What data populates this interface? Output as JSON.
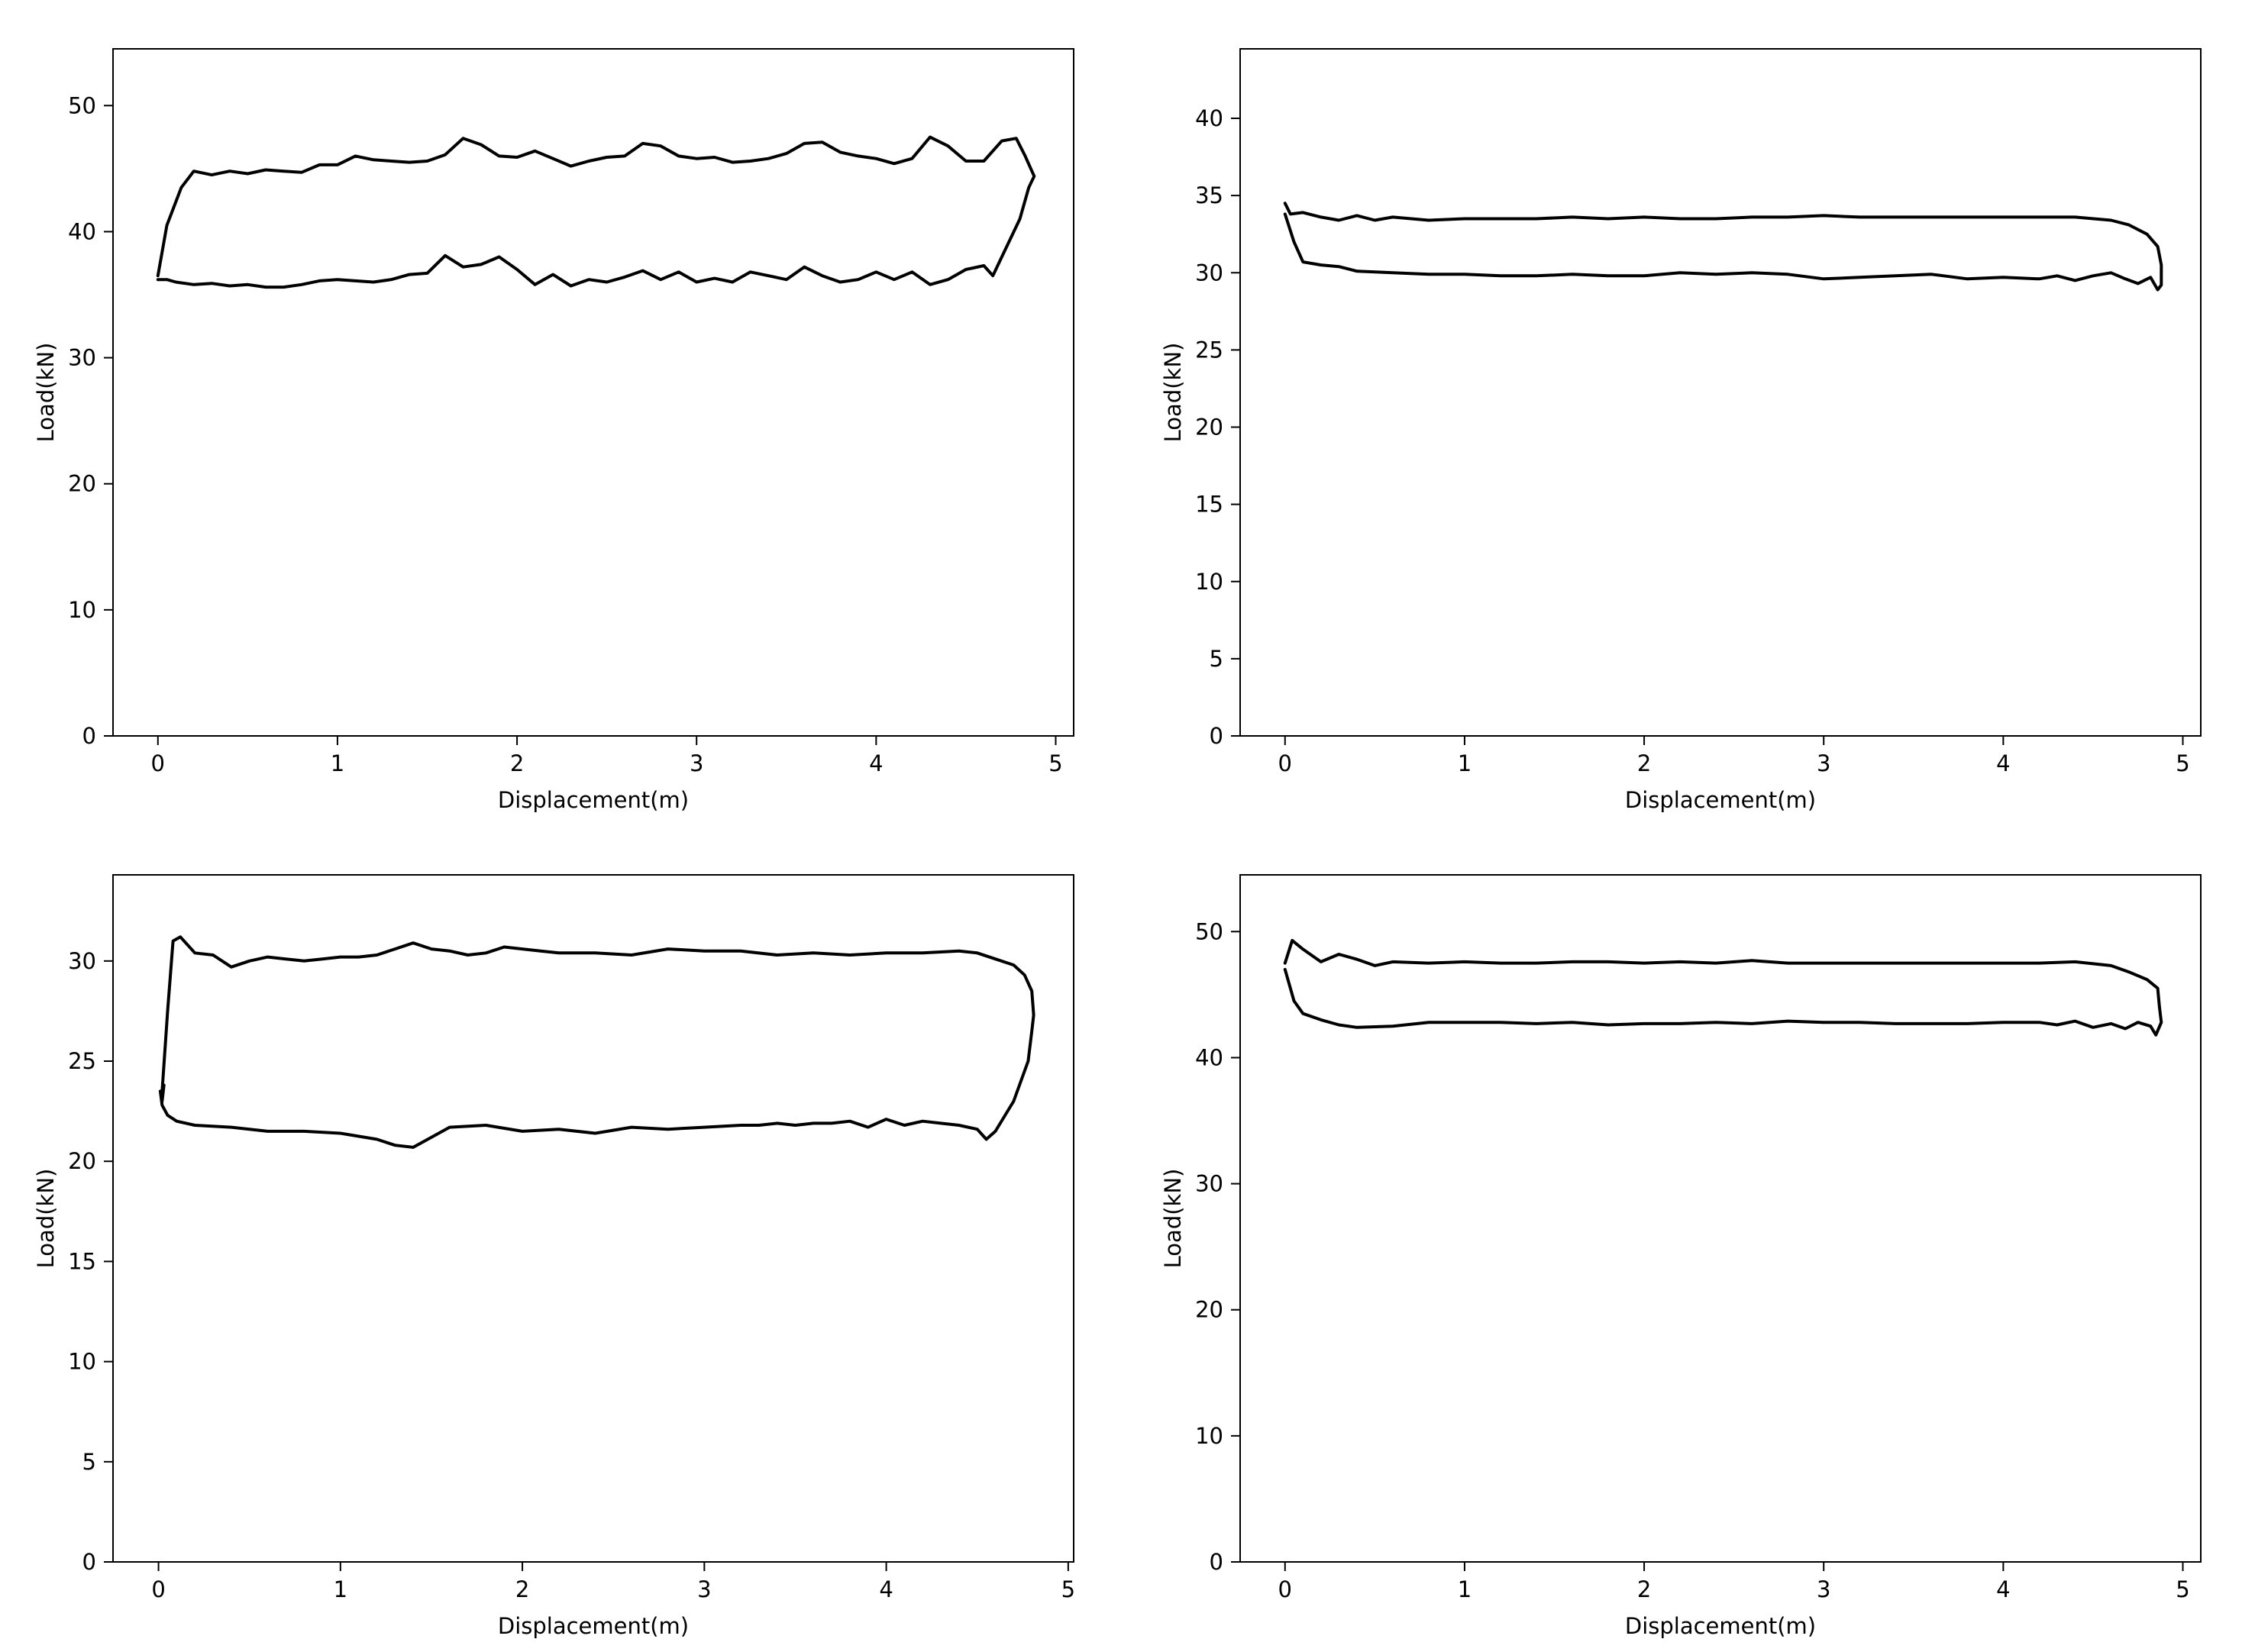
{
  "figure": {
    "background": "#ffffff",
    "line_color": "#000000"
  },
  "chart_data": [
    {
      "type": "line",
      "xlabel": "Displacement(m)",
      "ylabel": "Load(kN)",
      "xlim": [
        -0.25,
        5.1
      ],
      "ylim": [
        0,
        54.5
      ],
      "xticks": [
        0,
        1,
        2,
        3,
        4,
        5
      ],
      "yticks": [
        0,
        10,
        20,
        30,
        40,
        50
      ],
      "grid": false,
      "legend": "none",
      "x": [
        0,
        0.05,
        0.13,
        0.2,
        0.3,
        0.4,
        0.5,
        0.6,
        0.7,
        0.8,
        0.9,
        1.0,
        1.1,
        1.2,
        1.3,
        1.4,
        1.5,
        1.6,
        1.7,
        1.8,
        1.9,
        2.0,
        2.1,
        2.2,
        2.3,
        2.4,
        2.5,
        2.6,
        2.7,
        2.8,
        2.9,
        3.0,
        3.1,
        3.2,
        3.3,
        3.4,
        3.5,
        3.6,
        3.7,
        3.8,
        3.9,
        4.0,
        4.1,
        4.2,
        4.3,
        4.4,
        4.5,
        4.6,
        4.7,
        4.78,
        4.83,
        4.88,
        4.85,
        4.8,
        4.7,
        4.65,
        4.6,
        4.5,
        4.4,
        4.3,
        4.2,
        4.1,
        4.0,
        3.9,
        3.8,
        3.7,
        3.6,
        3.5,
        3.4,
        3.3,
        3.2,
        3.1,
        3.0,
        2.9,
        2.8,
        2.7,
        2.6,
        2.5,
        2.4,
        2.3,
        2.2,
        2.1,
        2.0,
        1.9,
        1.8,
        1.7,
        1.6,
        1.5,
        1.4,
        1.3,
        1.2,
        1.1,
        1.0,
        0.9,
        0.8,
        0.7,
        0.6,
        0.5,
        0.4,
        0.3,
        0.2,
        0.1,
        0.05,
        0
      ],
      "y": [
        36.5,
        40.5,
        43.5,
        44.8,
        44.5,
        44.8,
        44.6,
        44.9,
        44.8,
        44.7,
        45.3,
        45.3,
        46.0,
        45.7,
        45.6,
        45.5,
        45.6,
        46.1,
        47.4,
        46.9,
        46.0,
        45.9,
        46.4,
        45.8,
        45.2,
        45.6,
        45.9,
        46.0,
        47.0,
        46.8,
        46.0,
        45.8,
        45.9,
        45.5,
        45.6,
        45.8,
        46.2,
        47.0,
        47.1,
        46.3,
        46.0,
        45.8,
        45.4,
        45.8,
        47.5,
        46.8,
        45.6,
        45.6,
        47.2,
        47.4,
        46.0,
        44.4,
        43.5,
        41.0,
        38.0,
        36.5,
        37.3,
        37.0,
        36.2,
        35.8,
        36.8,
        36.2,
        36.8,
        36.2,
        36.0,
        36.5,
        37.2,
        36.2,
        36.5,
        36.8,
        36.0,
        36.3,
        36.0,
        36.8,
        36.2,
        36.9,
        36.4,
        36.0,
        36.2,
        35.7,
        36.6,
        35.8,
        37.0,
        38.0,
        37.4,
        37.2,
        38.1,
        36.7,
        36.6,
        36.2,
        36.0,
        36.1,
        36.2,
        36.1,
        35.8,
        35.6,
        35.6,
        35.8,
        35.7,
        35.9,
        35.8,
        36.0,
        36.2,
        36.2
      ]
    },
    {
      "type": "line",
      "xlabel": "Displacement(m)",
      "ylabel": "Load(kN)",
      "xlim": [
        -0.25,
        5.1
      ],
      "ylim": [
        0,
        44.5
      ],
      "xticks": [
        0,
        1,
        2,
        3,
        4,
        5
      ],
      "yticks": [
        0,
        5,
        10,
        15,
        20,
        25,
        30,
        35,
        40
      ],
      "grid": false,
      "legend": "none",
      "x": [
        0,
        0.03,
        0.1,
        0.2,
        0.3,
        0.4,
        0.5,
        0.6,
        0.8,
        1.0,
        1.2,
        1.4,
        1.6,
        1.8,
        2.0,
        2.2,
        2.4,
        2.6,
        2.8,
        3.0,
        3.2,
        3.4,
        3.6,
        3.8,
        4.0,
        4.2,
        4.4,
        4.6,
        4.7,
        4.8,
        4.86,
        4.88,
        4.88,
        4.86,
        4.82,
        4.75,
        4.68,
        4.6,
        4.5,
        4.4,
        4.3,
        4.2,
        4.0,
        3.8,
        3.6,
        3.4,
        3.2,
        3.0,
        2.8,
        2.6,
        2.4,
        2.2,
        2.0,
        1.8,
        1.6,
        1.4,
        1.2,
        1.0,
        0.8,
        0.6,
        0.4,
        0.3,
        0.2,
        0.1,
        0.05,
        0
      ],
      "y": [
        34.5,
        33.8,
        33.9,
        33.6,
        33.4,
        33.7,
        33.4,
        33.6,
        33.4,
        33.5,
        33.5,
        33.5,
        33.6,
        33.5,
        33.6,
        33.5,
        33.5,
        33.6,
        33.6,
        33.7,
        33.6,
        33.6,
        33.6,
        33.6,
        33.6,
        33.6,
        33.6,
        33.4,
        33.1,
        32.5,
        31.7,
        30.5,
        29.2,
        28.9,
        29.7,
        29.3,
        29.6,
        30.0,
        29.8,
        29.5,
        29.8,
        29.6,
        29.7,
        29.6,
        29.9,
        29.8,
        29.7,
        29.6,
        29.9,
        30.0,
        29.9,
        30.0,
        29.8,
        29.8,
        29.9,
        29.8,
        29.8,
        29.9,
        29.9,
        30.0,
        30.1,
        30.4,
        30.5,
        30.7,
        32.0,
        33.8
      ]
    },
    {
      "type": "line",
      "xlabel": "Displacement(m)",
      "ylabel": "Load(kN)",
      "xlim": [
        -0.25,
        5.03
      ],
      "ylim": [
        0,
        34.3
      ],
      "xticks": [
        0,
        1,
        2,
        3,
        4,
        5
      ],
      "yticks": [
        0,
        5,
        10,
        15,
        20,
        25,
        30
      ],
      "grid": false,
      "legend": "none",
      "x": [
        0.02,
        0.05,
        0.08,
        0.12,
        0.2,
        0.3,
        0.4,
        0.5,
        0.6,
        0.7,
        0.8,
        0.9,
        1.0,
        1.1,
        1.2,
        1.3,
        1.4,
        1.5,
        1.6,
        1.7,
        1.8,
        1.9,
        2.0,
        2.1,
        2.2,
        2.4,
        2.6,
        2.8,
        3.0,
        3.2,
        3.4,
        3.6,
        3.8,
        4.0,
        4.2,
        4.4,
        4.5,
        4.6,
        4.7,
        4.76,
        4.8,
        4.81,
        4.8,
        4.78,
        4.7,
        4.6,
        4.55,
        4.5,
        4.4,
        4.3,
        4.2,
        4.1,
        4.0,
        3.9,
        3.8,
        3.7,
        3.6,
        3.5,
        3.4,
        3.3,
        3.2,
        3.0,
        2.8,
        2.6,
        2.4,
        2.2,
        2.0,
        1.8,
        1.6,
        1.5,
        1.4,
        1.3,
        1.2,
        1.0,
        0.8,
        0.6,
        0.4,
        0.2,
        0.1,
        0.05,
        0.02,
        0.01,
        0.02,
        0.03
      ],
      "y": [
        23.5,
        27.5,
        31.0,
        31.2,
        30.4,
        30.3,
        29.7,
        30.0,
        30.2,
        30.1,
        30.0,
        30.1,
        30.2,
        30.2,
        30.3,
        30.6,
        30.9,
        30.6,
        30.5,
        30.3,
        30.4,
        30.7,
        30.6,
        30.5,
        30.4,
        30.4,
        30.3,
        30.6,
        30.5,
        30.5,
        30.3,
        30.4,
        30.3,
        30.4,
        30.4,
        30.5,
        30.4,
        30.1,
        29.8,
        29.3,
        28.5,
        27.3,
        26.5,
        25.0,
        23.0,
        21.5,
        21.1,
        21.6,
        21.8,
        21.9,
        22.0,
        21.8,
        22.1,
        21.7,
        22.0,
        21.9,
        21.9,
        21.8,
        21.9,
        21.8,
        21.8,
        21.7,
        21.6,
        21.7,
        21.4,
        21.6,
        21.5,
        21.8,
        21.7,
        21.2,
        20.7,
        20.8,
        21.1,
        21.4,
        21.5,
        21.5,
        21.7,
        21.8,
        22.0,
        22.3,
        22.8,
        23.5,
        23.0,
        23.8
      ]
    },
    {
      "type": "line",
      "xlabel": "Displacement(m)",
      "ylabel": "Load(kN)",
      "xlim": [
        -0.25,
        5.1
      ],
      "ylim": [
        0,
        54.5
      ],
      "xticks": [
        0,
        1,
        2,
        3,
        4,
        5
      ],
      "yticks": [
        0,
        10,
        20,
        30,
        40,
        50
      ],
      "grid": false,
      "legend": "none",
      "x": [
        0,
        0.04,
        0.1,
        0.2,
        0.3,
        0.4,
        0.5,
        0.6,
        0.8,
        1.0,
        1.2,
        1.4,
        1.6,
        1.8,
        2.0,
        2.2,
        2.4,
        2.6,
        2.8,
        3.0,
        3.2,
        3.4,
        3.6,
        3.8,
        4.0,
        4.2,
        4.4,
        4.6,
        4.7,
        4.8,
        4.86,
        4.87,
        4.88,
        4.85,
        4.82,
        4.75,
        4.68,
        4.6,
        4.5,
        4.4,
        4.3,
        4.2,
        4.0,
        3.8,
        3.6,
        3.4,
        3.2,
        3.0,
        2.8,
        2.6,
        2.4,
        2.2,
        2.0,
        1.8,
        1.6,
        1.4,
        1.2,
        1.0,
        0.8,
        0.6,
        0.4,
        0.3,
        0.2,
        0.1,
        0.05,
        0.02,
        0
      ],
      "y": [
        47.5,
        49.3,
        48.6,
        47.6,
        48.2,
        47.8,
        47.3,
        47.6,
        47.5,
        47.6,
        47.5,
        47.5,
        47.6,
        47.6,
        47.5,
        47.6,
        47.5,
        47.7,
        47.5,
        47.5,
        47.5,
        47.5,
        47.5,
        47.5,
        47.5,
        47.5,
        47.6,
        47.3,
        46.8,
        46.2,
        45.5,
        44.0,
        42.8,
        41.8,
        42.5,
        42.8,
        42.3,
        42.7,
        42.4,
        42.9,
        42.6,
        42.8,
        42.8,
        42.7,
        42.7,
        42.7,
        42.8,
        42.8,
        42.9,
        42.7,
        42.8,
        42.7,
        42.7,
        42.6,
        42.8,
        42.7,
        42.8,
        42.8,
        42.8,
        42.5,
        42.4,
        42.6,
        43.0,
        43.5,
        44.5,
        46.0,
        47.0
      ]
    }
  ]
}
